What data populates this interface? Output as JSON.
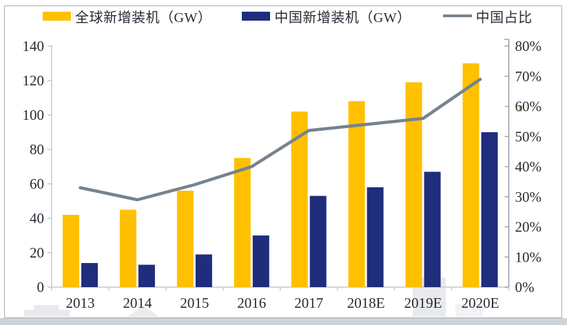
{
  "legend": {
    "items": [
      {
        "label": "全球新增装机（GW）",
        "type": "bar",
        "color": "#FFC000"
      },
      {
        "label": "中国新增装机（GW）",
        "type": "bar",
        "color": "#1F2D7D"
      },
      {
        "label": "中国占比",
        "type": "line",
        "color": "#76838E"
      }
    ]
  },
  "chart_data": {
    "type": "bar",
    "subtype": "grouped-bars-with-line-on-secondary-axis",
    "title": "",
    "categories": [
      "2013",
      "2014",
      "2015",
      "2016",
      "2017",
      "2018E",
      "2019E",
      "2020E"
    ],
    "series": [
      {
        "name": "全球新增装机（GW）",
        "type": "bar",
        "axis": "left",
        "color": "#FFC000",
        "values": [
          42,
          45,
          56,
          75,
          102,
          108,
          119,
          130
        ]
      },
      {
        "name": "中国新增装机（GW）",
        "type": "bar",
        "axis": "left",
        "color": "#1F2D7D",
        "values": [
          14,
          13,
          19,
          30,
          53,
          58,
          67,
          90
        ]
      },
      {
        "name": "中国占比",
        "type": "line",
        "axis": "right",
        "color": "#76838E",
        "values": [
          33,
          29,
          34,
          40,
          52,
          54,
          56,
          69
        ],
        "unit": "%"
      }
    ],
    "left_axis": {
      "min": 0,
      "max": 140,
      "step": 20,
      "tick_labels": [
        "0",
        "20",
        "40",
        "60",
        "80",
        "100",
        "120",
        "140"
      ]
    },
    "right_axis": {
      "min": 0,
      "max": 80,
      "step": 10,
      "tick_labels": [
        "0%",
        "10%",
        "20%",
        "30%",
        "40%",
        "50%",
        "60%",
        "70%",
        "80%"
      ],
      "unit": "%"
    },
    "grid": false,
    "legend_position": "top"
  },
  "style": {
    "bar_color_global": "#FFC000",
    "bar_color_china": "#1F2D7D",
    "line_color": "#76838E",
    "axis_line_color": "#c3c8cc",
    "right_axis_line_color": "#9aa1a7",
    "text_color": "#2a2a36",
    "card_border_color": "#a9aeb3",
    "page_strip_color": "#cdd3d8"
  }
}
